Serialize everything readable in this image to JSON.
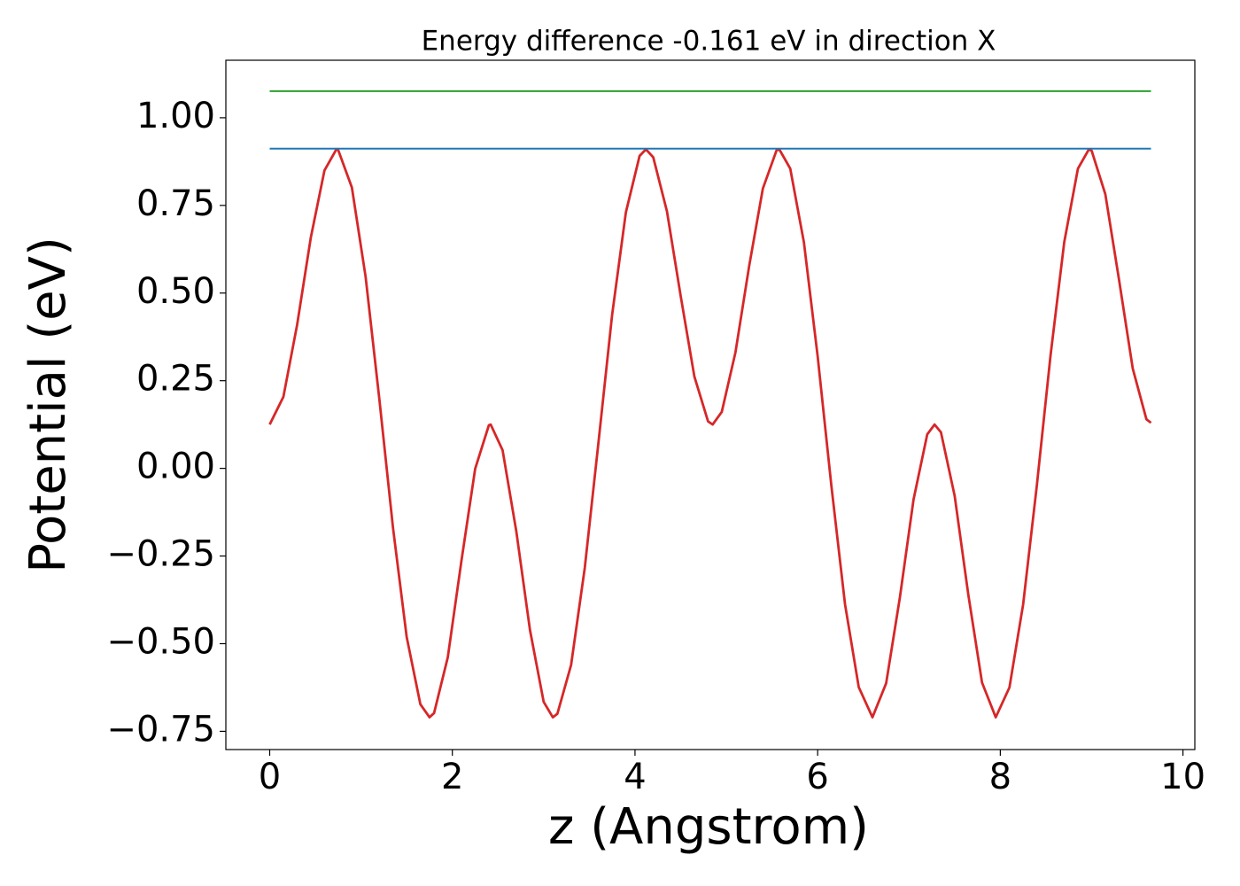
{
  "chart_data": {
    "type": "line",
    "title": "Energy difference -0.161 eV in direction X",
    "xlabel": "z (Angstrom)",
    "ylabel": "Potential (eV)",
    "xlim": [
      -0.48,
      10.13
    ],
    "ylim": [
      -0.802,
      1.164
    ],
    "xticks": [
      0,
      2,
      4,
      6,
      8,
      10
    ],
    "yticks": [
      {
        "value": -0.75,
        "label": "−0.75"
      },
      {
        "value": -0.5,
        "label": "−0.50"
      },
      {
        "value": -0.25,
        "label": "−0.25"
      },
      {
        "value": 0,
        "label": "0.00"
      },
      0.25,
      {
        "value": 0.5,
        "label": "0.50"
      },
      0.75,
      {
        "value": 1,
        "label": "1.00"
      }
    ],
    "grid": false,
    "series": [
      {
        "color": "#d62728",
        "x": [
          0,
          0.15,
          0.3,
          0.45,
          0.6,
          0.73,
          0.75,
          0.9,
          1.05,
          1.2,
          1.35,
          1.5,
          1.65,
          1.75,
          1.8,
          1.95,
          2.1,
          2.25,
          2.4,
          2.42,
          2.55,
          2.7,
          2.85,
          3.0,
          3.1,
          3.15,
          3.3,
          3.45,
          3.6,
          3.75,
          3.9,
          4.05,
          4.12,
          4.2,
          4.35,
          4.5,
          4.65,
          4.8,
          4.85,
          4.95,
          5.1,
          5.25,
          5.4,
          5.55,
          5.58,
          5.7,
          5.85,
          6.0,
          6.15,
          6.3,
          6.45,
          6.6,
          6.75,
          6.9,
          7.05,
          7.2,
          7.28,
          7.35,
          7.5,
          7.65,
          7.8,
          7.95,
          8.1,
          8.25,
          8.4,
          8.55,
          8.7,
          8.85,
          8.97,
          9.0,
          9.15,
          9.3,
          9.45,
          9.6,
          9.65
        ],
        "values": [
          0.125,
          0.204,
          0.409,
          0.658,
          0.85,
          0.91,
          0.908,
          0.801,
          0.547,
          0.199,
          -0.169,
          -0.481,
          -0.673,
          -0.71,
          -0.698,
          -0.539,
          -0.263,
          -0.001,
          0.123,
          0.125,
          0.052,
          -0.179,
          -0.461,
          -0.666,
          -0.71,
          -0.7,
          -0.561,
          -0.284,
          0.074,
          0.439,
          0.73,
          0.891,
          0.91,
          0.887,
          0.733,
          0.492,
          0.262,
          0.134,
          0.125,
          0.161,
          0.331,
          0.577,
          0.798,
          0.907,
          0.91,
          0.855,
          0.644,
          0.32,
          -0.049,
          -0.388,
          -0.624,
          -0.71,
          -0.613,
          -0.369,
          -0.089,
          0.097,
          0.125,
          0.103,
          -0.078,
          -0.361,
          -0.611,
          -0.71,
          -0.625,
          -0.388,
          -0.049,
          0.322,
          0.645,
          0.855,
          0.91,
          0.906,
          0.782,
          0.538,
          0.285,
          0.14,
          0.13
        ]
      },
      {
        "color": "#1f77b4",
        "x": [
          0,
          9.65
        ],
        "values": [
          0.912,
          0.912
        ]
      },
      {
        "color": "#2ca02c",
        "x": [
          0,
          9.65
        ],
        "values": [
          1.076,
          1.076
        ]
      }
    ]
  }
}
